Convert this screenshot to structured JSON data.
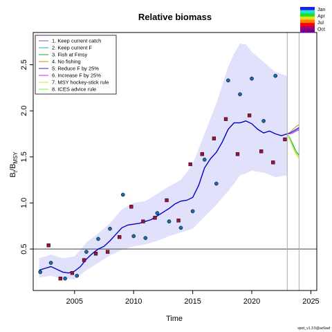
{
  "chart_data": {
    "type": "line",
    "title": "Relative biomass",
    "xlabel": "Time",
    "ylabel": {
      "base": "B",
      "sub1": "t",
      "sep": "/B",
      "sub2": "MSY"
    },
    "xlim": [
      2001.5,
      2025.5
    ],
    "ylim": [
      0.05,
      2.85
    ],
    "x_ticks": [
      2005,
      2010,
      2015,
      2020,
      2025
    ],
    "y_ticks": [
      0.5,
      1.0,
      1.5,
      2.0,
      2.5
    ],
    "x_tick_labels": [
      "2005",
      "2010",
      "2015",
      "2020",
      "2025"
    ],
    "y_tick_labels": [
      "0.5",
      "1.0",
      "1.5",
      "2.0",
      "2.5"
    ],
    "reference_line": {
      "y": 0.5,
      "color": "#555555"
    },
    "vertical_lines": [
      2023.0,
      2024.0
    ],
    "grid": false,
    "estimate": {
      "color": "#0000cc",
      "x": [
        2002.0,
        2002.5,
        2003.0,
        2003.5,
        2004.0,
        2004.5,
        2005.0,
        2005.5,
        2006.0,
        2006.5,
        2007.0,
        2007.5,
        2008.0,
        2008.5,
        2009.0,
        2009.5,
        2010.0,
        2010.5,
        2011.0,
        2011.5,
        2012.0,
        2012.5,
        2013.0,
        2013.5,
        2014.0,
        2014.5,
        2015.0,
        2015.5,
        2016.0,
        2016.5,
        2017.0,
        2017.5,
        2018.0,
        2018.5,
        2019.0,
        2019.5,
        2020.0,
        2020.5,
        2021.0,
        2021.5,
        2022.0,
        2022.5,
        2023.0
      ],
      "y": [
        0.27,
        0.29,
        0.31,
        0.28,
        0.25,
        0.24,
        0.26,
        0.31,
        0.39,
        0.45,
        0.5,
        0.53,
        0.59,
        0.66,
        0.73,
        0.76,
        0.77,
        0.78,
        0.8,
        0.82,
        0.86,
        0.9,
        0.94,
        0.99,
        1.02,
        1.03,
        1.06,
        1.19,
        1.38,
        1.48,
        1.55,
        1.66,
        1.8,
        1.87,
        1.87,
        1.89,
        1.86,
        1.8,
        1.76,
        1.78,
        1.75,
        1.73,
        1.75
      ]
    },
    "ci_band": {
      "color": "#e1e1fb",
      "x": [
        2002.0,
        2003.0,
        2004.0,
        2005.0,
        2006.0,
        2007.0,
        2008.0,
        2009.0,
        2010.0,
        2011.0,
        2012.0,
        2013.0,
        2014.0,
        2015.0,
        2016.0,
        2017.0,
        2018.0,
        2018.5,
        2019.0,
        2019.5,
        2020.0,
        2021.0,
        2022.0,
        2023.0
      ],
      "upper": [
        0.4,
        0.44,
        0.4,
        0.42,
        0.57,
        0.67,
        0.78,
        0.93,
        1.0,
        1.02,
        1.1,
        1.18,
        1.25,
        1.42,
        1.75,
        2.08,
        2.48,
        2.62,
        2.73,
        2.72,
        2.64,
        2.53,
        2.42,
        2.38
      ],
      "lower": [
        0.19,
        0.21,
        0.18,
        0.17,
        0.27,
        0.35,
        0.43,
        0.49,
        0.53,
        0.55,
        0.59,
        0.64,
        0.68,
        0.72,
        0.85,
        0.98,
        1.13,
        1.21,
        1.3,
        1.32,
        1.35,
        1.33,
        1.28,
        1.3
      ]
    },
    "observations": [
      {
        "name": "Index 1 (circles)",
        "shape": "circle",
        "color": "#1a6aa8",
        "x": [
          2002.1,
          2003.0,
          2004.2,
          2005.2,
          2006.0,
          2007.0,
          2008.0,
          2009.1,
          2010.0,
          2011.0,
          2012.0,
          2013.0,
          2014.0,
          2015.0,
          2016.0,
          2017.0,
          2018.0,
          2019.0,
          2020.0,
          2021.0,
          2022.0
        ],
        "y": [
          0.25,
          0.35,
          0.18,
          0.21,
          0.47,
          0.61,
          0.72,
          1.09,
          0.64,
          0.62,
          0.89,
          0.8,
          0.73,
          0.91,
          1.47,
          1.21,
          2.33,
          2.18,
          2.35,
          1.89,
          2.38
        ]
      },
      {
        "name": "Index 2 (squares)",
        "shape": "square",
        "color": "#a01040",
        "x": [
          2002.8,
          2003.8,
          2004.8,
          2005.8,
          2006.8,
          2007.8,
          2008.8,
          2009.8,
          2010.8,
          2011.8,
          2012.8,
          2013.8,
          2014.8,
          2015.8,
          2016.8,
          2017.8,
          2018.8,
          2019.8,
          2020.8,
          2021.8,
          2022.8
        ],
        "y": [
          0.54,
          0.18,
          0.24,
          0.38,
          0.45,
          0.47,
          0.63,
          0.96,
          0.8,
          0.84,
          1.03,
          0.81,
          1.42,
          1.53,
          1.7,
          1.91,
          1.53,
          1.95,
          1.56,
          1.44,
          1.69
        ]
      }
    ],
    "forecast": {
      "x": [
        2023.0,
        2023.25,
        2023.5,
        2023.75,
        2024.0
      ],
      "scenarios": [
        {
          "name": "1. Keep current catch",
          "color": "#a040c0",
          "y": [
            1.75,
            1.76,
            1.78,
            1.8,
            1.81
          ]
        },
        {
          "name": "2. Keep current F",
          "color": "#30a0e0",
          "y": [
            1.75,
            1.76,
            1.77,
            1.79,
            1.8
          ]
        },
        {
          "name": "3. Fish at Fmsy",
          "color": "#10a050",
          "y": [
            1.75,
            1.7,
            1.63,
            1.56,
            1.52
          ]
        },
        {
          "name": "4. No fishing",
          "color": "#d08030",
          "y": [
            1.75,
            1.77,
            1.8,
            1.83,
            1.85
          ]
        },
        {
          "name": "5. Reduce F by 25%",
          "color": "#2020d0",
          "y": [
            1.75,
            1.76,
            1.78,
            1.8,
            1.82
          ]
        },
        {
          "name": "6. Increase F by 25%",
          "color": "#e020e0",
          "y": [
            1.75,
            1.75,
            1.76,
            1.78,
            1.79
          ]
        },
        {
          "name": "7. MSY hockey-stick rule",
          "color": "#e8d820",
          "y": [
            1.75,
            1.68,
            1.6,
            1.53,
            1.48
          ]
        },
        {
          "name": "8. ICES advice rule",
          "color": "#80f040",
          "y": [
            1.75,
            1.69,
            1.61,
            1.55,
            1.5
          ]
        }
      ]
    },
    "legend_placement": "top-left",
    "colorbar": {
      "labels": [
        "Jan",
        "Apr",
        "Jul",
        "Oct"
      ],
      "colors": [
        "#2020e0",
        "#20e0e0",
        "#20e020",
        "#e0e020",
        "#ff8000",
        "#ff0000",
        "#a00070",
        "#700090"
      ]
    },
    "footnote": "spict_v1.3.5@ac6aaf"
  }
}
